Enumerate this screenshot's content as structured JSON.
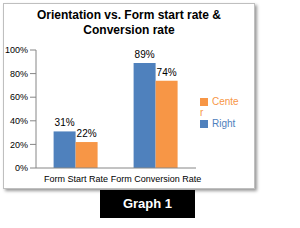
{
  "chart_data": {
    "type": "bar",
    "title": "Orientation vs. Form start rate & Conversion rate",
    "categories": [
      "Form Start Rate",
      "Form Conversion Rate"
    ],
    "series": [
      {
        "name": "Right",
        "color": "#4f81bd",
        "values": [
          31,
          89
        ],
        "value_labels": [
          "31%",
          "89%"
        ]
      },
      {
        "name": "Center",
        "color": "#f79646",
        "values": [
          22,
          74
        ],
        "value_labels": [
          "22%",
          "74%"
        ]
      }
    ],
    "ylim": [
      0,
      100
    ],
    "yticks": [
      {
        "value": 0,
        "label": "0%"
      },
      {
        "value": 20,
        "label": "20%"
      },
      {
        "value": 40,
        "label": "40%"
      },
      {
        "value": 60,
        "label": "60%"
      },
      {
        "value": 80,
        "label": "80%"
      },
      {
        "value": 100,
        "label": "100%"
      }
    ],
    "grid": false,
    "legend": "right",
    "data_labels": true,
    "annotations": [
      "Graph 1"
    ]
  }
}
